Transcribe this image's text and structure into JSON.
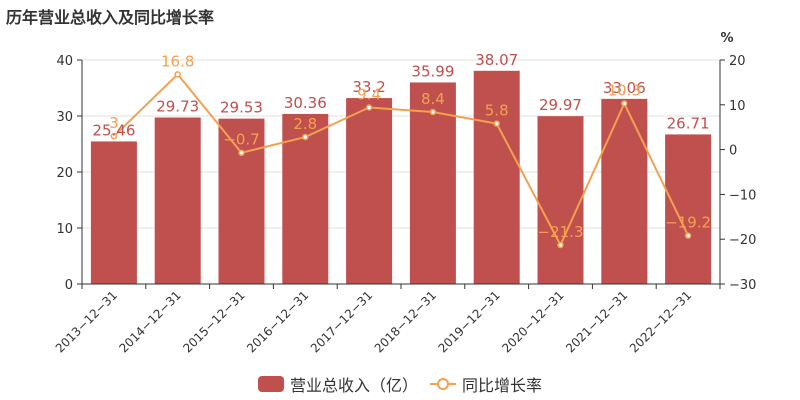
{
  "title": "历年营业总收入及同比增长率",
  "colors": {
    "bar": "#c0504d",
    "line": "#f4a051",
    "axis": "#333333",
    "grid": "#e0e0e0",
    "text": "#333333"
  },
  "legend": {
    "bar_label": "营业总收入（亿）",
    "line_label": "同比增长率"
  },
  "chart_data": {
    "type": "bar+line",
    "categories": [
      "2013-12-31",
      "2014-12-31",
      "2015-12-31",
      "2016-12-31",
      "2017-12-31",
      "2018-12-31",
      "2019-12-31",
      "2020-12-31",
      "2021-12-31",
      "2022-12-31"
    ],
    "series": [
      {
        "name": "营业总收入（亿）",
        "type": "bar",
        "axis": "left",
        "values": [
          25.46,
          29.73,
          29.53,
          30.36,
          33.2,
          35.99,
          38.07,
          29.97,
          33.06,
          26.71
        ],
        "labels": [
          "25.46",
          "29.73",
          "29.53",
          "30.36",
          "33.2",
          "35.99",
          "38.07",
          "29.97",
          "33.06",
          "26.71"
        ]
      },
      {
        "name": "同比增长率",
        "type": "line",
        "axis": "right",
        "values": [
          3,
          16.8,
          -0.7,
          2.8,
          9.4,
          8.4,
          5.8,
          -21.3,
          10.3,
          -19.2
        ],
        "labels": [
          "3",
          "16.8",
          "-0.7",
          "2.8",
          "9.4",
          "8.4",
          "5.8",
          "-21.3",
          "10.3",
          "-19.2"
        ]
      }
    ],
    "y_left": {
      "range": [
        0,
        40
      ],
      "ticks": [
        0,
        10,
        20,
        30,
        40
      ]
    },
    "y_right": {
      "label": "%",
      "range": [
        -30,
        20
      ],
      "ticks": [
        -30,
        -20,
        -10,
        0,
        10,
        20
      ]
    },
    "legend_position": "bottom"
  }
}
